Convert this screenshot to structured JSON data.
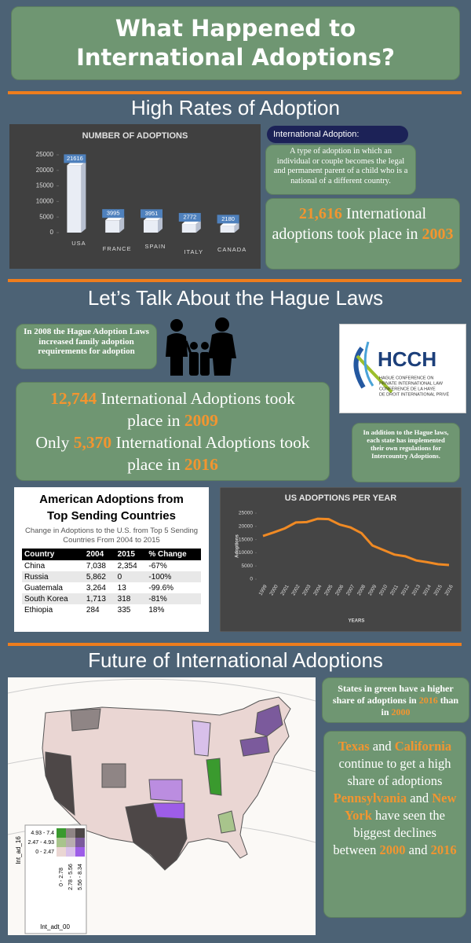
{
  "title": "What Happened to International Adoptions?",
  "sections": [
    "High Rates of Adoption",
    "Let’s Talk About the Hague Laws",
    "Future of International Adoptions"
  ],
  "bar_chart": {
    "type": "bar",
    "title": "NUMBER OF ADOPTIONS",
    "categories": [
      "USA",
      "FRANCE",
      "SPAIN",
      "ITALY",
      "CANADA"
    ],
    "values": [
      21616,
      3995,
      3951,
      2772,
      2180
    ],
    "ylim": [
      0,
      25000
    ],
    "yticks": [
      0,
      5000,
      10000,
      15000,
      20000,
      25000
    ],
    "color": "#e9edf5",
    "label_color": "#4f81bd"
  },
  "definition": {
    "term": "International Adoption:",
    "text": "A type of adoption in which an individual or couple becomes the legal and permanent parent of a child who is a national of a different country."
  },
  "stat_2003": [
    {
      "text": "21,616",
      "highlight": true
    },
    {
      "text": " International adoptions took place in ",
      "highlight": false
    },
    {
      "text": "2003",
      "highlight": true
    }
  ],
  "hague_note": "In 2008 the Hague Adoption Laws increased family adoption requirements for adoption",
  "logo": {
    "name": "HCCH",
    "lines": [
      "HAGUE CONFERENCE ON",
      "PRIVATE INTERNATIONAL LAW",
      "CONFÉRENCE DE LA HAYE",
      "DE DROIT INTERNATIONAL PRIVÉ"
    ]
  },
  "stat_hague": [
    [
      {
        "text": "12,744",
        "highlight": true
      },
      {
        "text": " International Adoptions took place in ",
        "highlight": false
      },
      {
        "text": "2009",
        "highlight": true
      }
    ],
    [
      {
        "text": "Only ",
        "highlight": false
      },
      {
        "text": "5,370",
        "highlight": true
      },
      {
        "text": " International Adoptions took place in ",
        "highlight": false
      },
      {
        "text": "2016",
        "highlight": true
      }
    ]
  ],
  "state_note": "In addition to the Hague laws, each state has implemented their own regulations for Intercountry Adoptions.",
  "table": {
    "title": "American Adoptions from Top Sending Countries",
    "subtitle": "Change in Adoptions to the U.S. from Top 5 Sending Countries From 2004 to 2015",
    "header": [
      "Country",
      "2004",
      "2015",
      "% Change"
    ],
    "rows": [
      [
        "China",
        "7,038",
        "2,354",
        "-67%"
      ],
      [
        "Russia",
        "5,862",
        "0",
        "-100%"
      ],
      [
        "Guatemala",
        "3,264",
        "13",
        "-99.6%"
      ],
      [
        "South Korea",
        "1,713",
        "318",
        "-81%"
      ],
      [
        "Ethiopia",
        "284",
        "335",
        "18%"
      ]
    ]
  },
  "line_chart": {
    "type": "line",
    "title": "US ADOPTIONS PER YEAR",
    "y_label": "Adoptions",
    "x_label": "YEARS",
    "categories": [
      "1999",
      "2000",
      "2001",
      "2002",
      "2003",
      "2004",
      "2005",
      "2006",
      "2007",
      "2008",
      "2009",
      "2010",
      "2011",
      "2012",
      "2013",
      "2014",
      "2015",
      "2016"
    ],
    "values": [
      16363,
      17718,
      19237,
      21467,
      21616,
      22884,
      22728,
      20680,
      19601,
      17438,
      12744,
      11058,
      9320,
      8668,
      7092,
      6441,
      5647,
      5370
    ],
    "ylim": [
      0,
      25000
    ],
    "yticks": [
      0,
      5000,
      10000,
      15000,
      20000,
      25000
    ],
    "color": "#f08a24"
  },
  "map": {
    "y_title": "Int_ad_16",
    "y_classes": [
      "4.93 - 7.4",
      "2.47 - 4.93",
      "0 - 2.47"
    ],
    "x_title": "Int_adt_00",
    "x_classes": [
      "0 - 2.78",
      "2.78 - 5.56",
      "5.56 - 8.34"
    ]
  },
  "green_note": [
    {
      "text": "States in green have a higher share of adoptions in ",
      "highlight": false
    },
    {
      "text": "2016",
      "highlight": true
    },
    {
      "text": " than in ",
      "highlight": false
    },
    {
      "text": "2000",
      "highlight": true
    }
  ],
  "future_note": [
    {
      "text": "Texas",
      "highlight": true
    },
    {
      "text": " and ",
      "highlight": false
    },
    {
      "text": "California",
      "highlight": true
    },
    {
      "text": " continue to get a high share of adoptions ",
      "highlight": false
    },
    {
      "text": "Pennsylvania",
      "highlight": true
    },
    {
      "text": " and ",
      "highlight": false
    },
    {
      "text": "New York",
      "highlight": true
    },
    {
      "text": " have seen the biggest declines between ",
      "highlight": false
    },
    {
      "text": "2000",
      "highlight": true
    },
    {
      "text": " and ",
      "highlight": false
    },
    {
      "text": "2016",
      "highlight": true
    }
  ]
}
